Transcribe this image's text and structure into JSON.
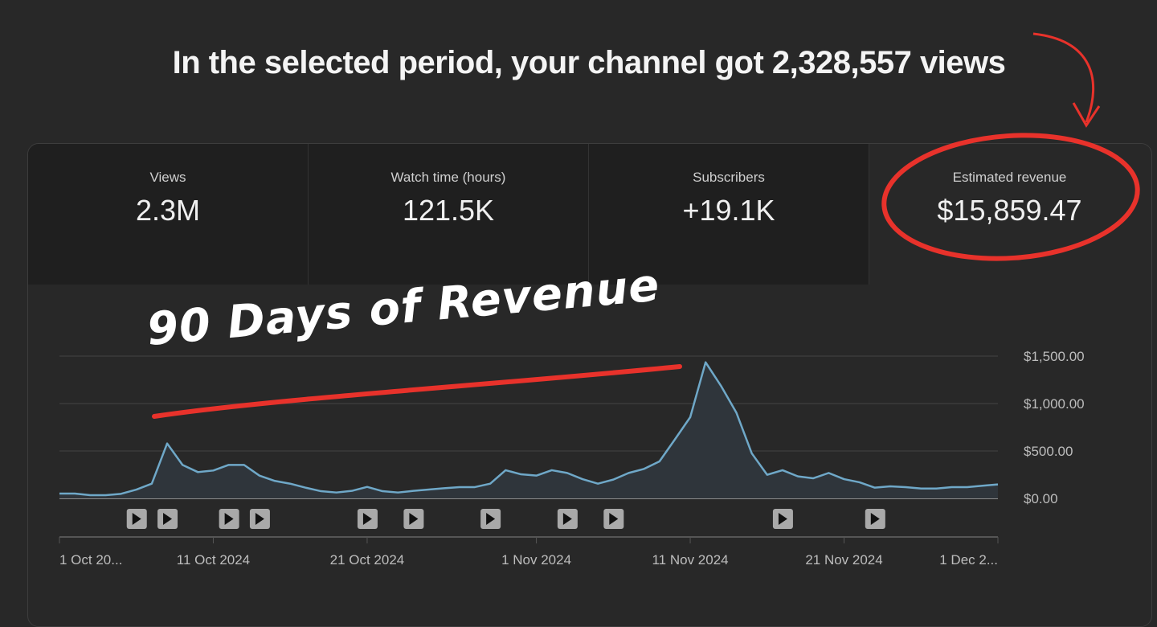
{
  "headline": "In the selected period, your channel got 2,328,557 views",
  "metrics": [
    {
      "label": "Views",
      "value": "2.3M"
    },
    {
      "label": "Watch time (hours)",
      "value": "121.5K"
    },
    {
      "label": "Subscribers",
      "value": "+19.1K"
    },
    {
      "label": "Estimated revenue",
      "value": "$15,859.47"
    }
  ],
  "annotation": "90 Days of Revenue",
  "colors": {
    "line": "#6fa8c8",
    "annotation_red": "#e8322b"
  },
  "chart_data": {
    "type": "area",
    "title": "Estimated revenue",
    "x_start": "1 Oct 2024",
    "xtick_labels": [
      "1 Oct 20...",
      "11 Oct 2024",
      "21 Oct 2024",
      "1 Nov 2024",
      "11 Nov 2024",
      "21 Nov 2024",
      "1 Dec 2..."
    ],
    "xtick_days": [
      0,
      10,
      20,
      31,
      41,
      51,
      61
    ],
    "ytick_labels": [
      "$0.00",
      "$500.00",
      "$1,000.00",
      "$1,500.00"
    ],
    "yticks": [
      0,
      500,
      1000,
      1500
    ],
    "ylim": [
      0,
      1500
    ],
    "values": [
      51,
      51,
      34,
      34,
      48,
      93,
      155,
      579,
      353,
      277,
      294,
      353,
      353,
      240,
      184,
      155,
      113,
      76,
      62,
      79,
      121,
      76,
      62,
      79,
      93,
      107,
      119,
      119,
      155,
      297,
      254,
      240,
      297,
      268,
      203,
      155,
      198,
      268,
      311,
      390,
      621,
      856,
      1435,
      1186,
      904,
      475,
      249,
      297,
      232,
      212,
      268,
      203,
      170,
      113,
      127,
      119,
      104,
      104,
      119,
      119,
      133,
      147
    ],
    "video_markers_days": [
      5,
      7,
      11,
      13,
      20,
      23,
      28,
      33,
      36,
      47,
      53
    ]
  }
}
